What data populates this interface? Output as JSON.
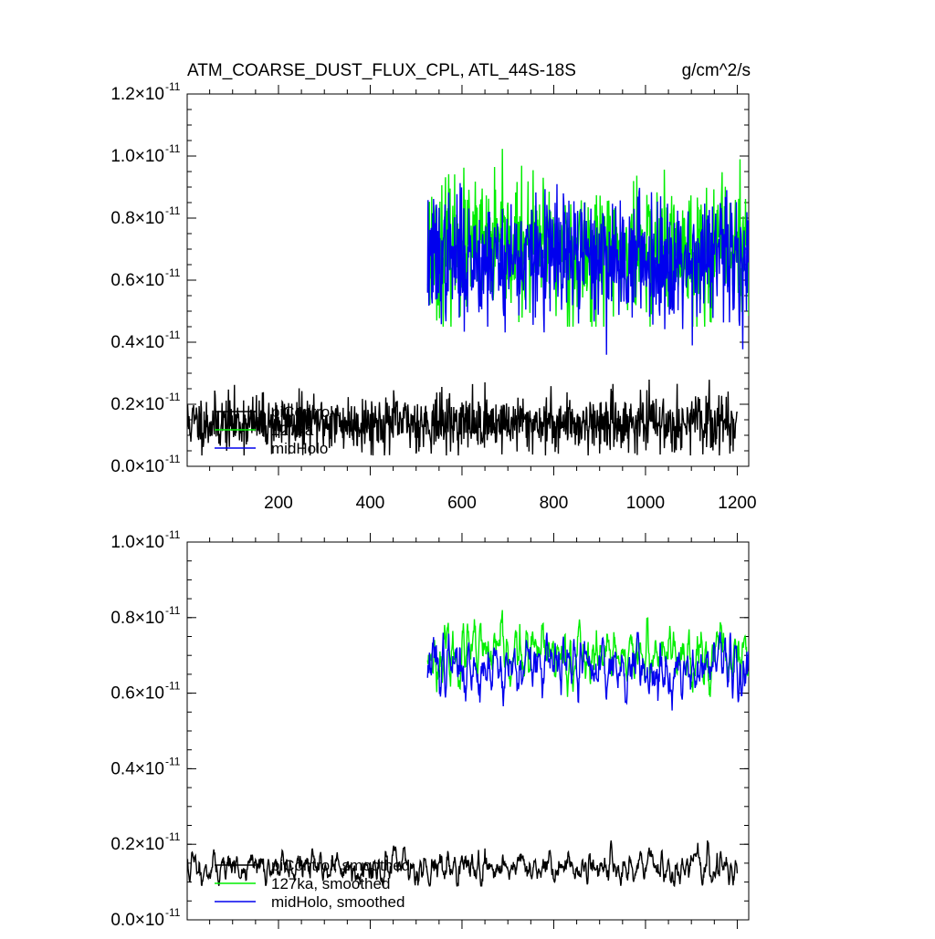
{
  "header": {
    "title": "ATM_COARSE_DUST_FLUX_CPL, ATL_44S-18S",
    "units": "g/cm^2/s"
  },
  "chart_data": [
    {
      "type": "line",
      "panel": "top",
      "x_range": [
        1,
        1225
      ],
      "xlim": [
        1,
        1225
      ],
      "ylim": [
        0,
        1.2e-11
      ],
      "x_ticks": [
        200,
        400,
        600,
        800,
        1000,
        1200
      ],
      "x_tick_labels": [
        "200",
        "400",
        "600",
        "800",
        "1000",
        "1200"
      ],
      "y_ticks": [
        0,
        2e-12,
        4e-12,
        6e-12,
        8e-12,
        1e-11,
        1.2e-11
      ],
      "y_tick_labels": [
        {
          "mantissa": "0.0",
          "times": "×",
          "base": "10",
          "exp": "-11"
        },
        {
          "mantissa": "0.2",
          "times": "×",
          "base": "10",
          "exp": "-11"
        },
        {
          "mantissa": "0.4",
          "times": "×",
          "base": "10",
          "exp": "-11"
        },
        {
          "mantissa": "0.6",
          "times": "×",
          "base": "10",
          "exp": "-11"
        },
        {
          "mantissa": "0.8",
          "times": "×",
          "base": "10",
          "exp": "-11"
        },
        {
          "mantissa": "1.0",
          "times": "×",
          "base": "10",
          "exp": "-11"
        },
        {
          "mantissa": "1.2",
          "times": "×",
          "base": "10",
          "exp": "-11"
        }
      ],
      "legend_position": "bottom-left",
      "series": [
        {
          "name": "piControl",
          "color": "#000000",
          "x_start": 1,
          "x_end": 1200,
          "mean": 1.4e-12,
          "sd": 4.5e-13,
          "min": 3.5e-13,
          "max": 3.65e-12,
          "seed": 11,
          "smooth": 1
        },
        {
          "name": "127ka",
          "color": "#00ee00",
          "x_start": 525,
          "x_end": 1225,
          "mean": 7e-12,
          "sd": 1.05e-12,
          "min": 4.5e-12,
          "max": 1.08e-11,
          "seed": 23,
          "smooth": 1
        },
        {
          "name": "midHolo",
          "color": "#0000ee",
          "x_start": 525,
          "x_end": 1225,
          "mean": 6.7e-12,
          "sd": 1e-12,
          "min": 3.3e-12,
          "max": 1e-11,
          "seed": 37,
          "smooth": 1
        }
      ]
    },
    {
      "type": "line",
      "panel": "bottom",
      "x_range": [
        1,
        1225
      ],
      "xlim": [
        1,
        1225
      ],
      "ylim": [
        0,
        1e-11
      ],
      "y_ticks": [
        0,
        2e-12,
        4e-12,
        6e-12,
        8e-12,
        1e-11
      ],
      "y_tick_labels": [
        {
          "mantissa": "0.0",
          "times": "×",
          "base": "10",
          "exp": "-11"
        },
        {
          "mantissa": "0.2",
          "times": "×",
          "base": "10",
          "exp": "-11"
        },
        {
          "mantissa": "0.4",
          "times": "×",
          "base": "10",
          "exp": "-11"
        },
        {
          "mantissa": "0.6",
          "times": "×",
          "base": "10",
          "exp": "-11"
        },
        {
          "mantissa": "0.8",
          "times": "×",
          "base": "10",
          "exp": "-11"
        },
        {
          "mantissa": "1.0",
          "times": "×",
          "base": "10",
          "exp": "-11"
        }
      ],
      "legend_position": "bottom-left",
      "series": [
        {
          "name": "piControl, smoothed",
          "color": "#000000",
          "x_start": 1,
          "x_end": 1200,
          "mean": 1.4e-12,
          "sd": 2.2e-13,
          "min": 9e-13,
          "max": 2.1e-12,
          "seed": 11,
          "smooth": 5
        },
        {
          "name": "127ka, smoothed",
          "color": "#00ee00",
          "x_start": 525,
          "x_end": 1225,
          "mean": 7e-12,
          "sd": 3.8e-13,
          "min": 5.9e-12,
          "max": 8.2e-12,
          "seed": 23,
          "smooth": 5
        },
        {
          "name": "midHolo, smoothed",
          "color": "#0000ee",
          "x_start": 525,
          "x_end": 1225,
          "mean": 6.7e-12,
          "sd": 3.8e-13,
          "min": 5.3e-12,
          "max": 7.6e-12,
          "seed": 37,
          "smooth": 5
        }
      ]
    }
  ]
}
